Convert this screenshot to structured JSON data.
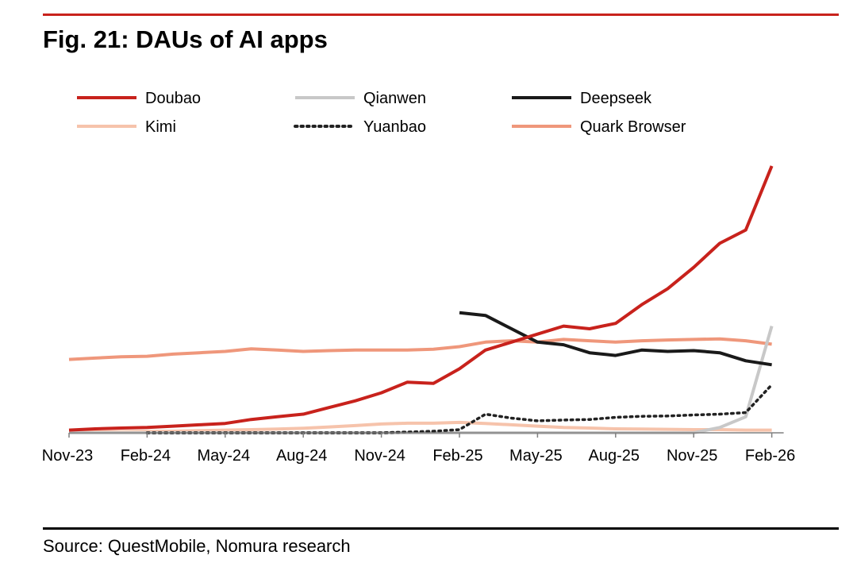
{
  "figure": {
    "title": "Fig. 21: DAUs of AI apps",
    "source": "Source: QuestMobile, Nomura research"
  },
  "chart_data": {
    "type": "line",
    "x": [
      "Nov-23",
      "Dec-23",
      "Jan-24",
      "Feb-24",
      "Mar-24",
      "Apr-24",
      "May-24",
      "Jun-24",
      "Jul-24",
      "Aug-24",
      "Sep-24",
      "Oct-24",
      "Nov-24",
      "Dec-24",
      "Jan-25",
      "Feb-25",
      "Mar-25",
      "Apr-25",
      "May-25",
      "Jun-25",
      "Jul-25",
      "Aug-25",
      "Sep-25",
      "Oct-25",
      "Nov-25",
      "Dec-25",
      "Jan-26",
      "Feb-26"
    ],
    "x_tick_labels": [
      "Nov-23",
      "Feb-24",
      "May-24",
      "Aug-24",
      "Nov-24",
      "Feb-25",
      "May-25",
      "Aug-25",
      "Nov-25",
      "Feb-26"
    ],
    "ylim": [
      0,
      100
    ],
    "y_axis_shown": false,
    "grid": false,
    "legend_position": "top",
    "series": [
      {
        "name": "Doubao",
        "color": "#c8221c",
        "style": "solid",
        "values": [
          1,
          1.5,
          1.8,
          2,
          2.5,
          3,
          3.5,
          5,
          6,
          7,
          9.5,
          12,
          15,
          19,
          18.5,
          24,
          31,
          34,
          37,
          40,
          39,
          41,
          48,
          54,
          62,
          71,
          76,
          100
        ]
      },
      {
        "name": "Qianwen",
        "color": "#c8c8c8",
        "style": "solid",
        "values": [
          0,
          0,
          0,
          0,
          0,
          0,
          0,
          0,
          0,
          0,
          0,
          0,
          0,
          0,
          0,
          0,
          0,
          0,
          0,
          0,
          0,
          0,
          0,
          0,
          0,
          2,
          6,
          40
        ]
      },
      {
        "name": "Deepseek",
        "color": "#1a1a1a",
        "style": "solid",
        "values": [
          null,
          null,
          null,
          null,
          null,
          null,
          null,
          null,
          null,
          null,
          null,
          null,
          null,
          null,
          null,
          45,
          44,
          39,
          34,
          33,
          30,
          29,
          31,
          30.5,
          30.8,
          30,
          27,
          25.5
        ]
      },
      {
        "name": "Kimi",
        "color": "#f6c3ab",
        "style": "solid",
        "values": [
          0.2,
          0.3,
          0.4,
          0.5,
          0.6,
          0.8,
          1,
          1.2,
          1.4,
          1.7,
          2.2,
          2.7,
          3.3,
          3.6,
          3.6,
          3.9,
          3.5,
          3,
          2.5,
          2,
          1.8,
          1.5,
          1.4,
          1.3,
          1.2,
          1.2,
          1,
          1
        ]
      },
      {
        "name": "Yuanbao",
        "color": "#222222",
        "style": "dotted",
        "values": [
          null,
          null,
          null,
          0,
          0,
          0,
          0,
          0,
          0,
          0,
          0,
          0,
          0,
          0.3,
          0.6,
          1.2,
          7,
          5.5,
          4.5,
          4.8,
          5,
          5.8,
          6.2,
          6.3,
          6.7,
          7,
          7.6,
          18
        ]
      },
      {
        "name": "Quark Browser",
        "color": "#ef977b",
        "style": "solid",
        "values": [
          27.5,
          28,
          28.5,
          28.7,
          29.5,
          30,
          30.5,
          31.5,
          31,
          30.5,
          30.8,
          31,
          31,
          31,
          31.3,
          32.3,
          34,
          34.5,
          34,
          35,
          34.5,
          34,
          34.5,
          34.8,
          35,
          35.2,
          34.5,
          33.2
        ]
      }
    ]
  }
}
